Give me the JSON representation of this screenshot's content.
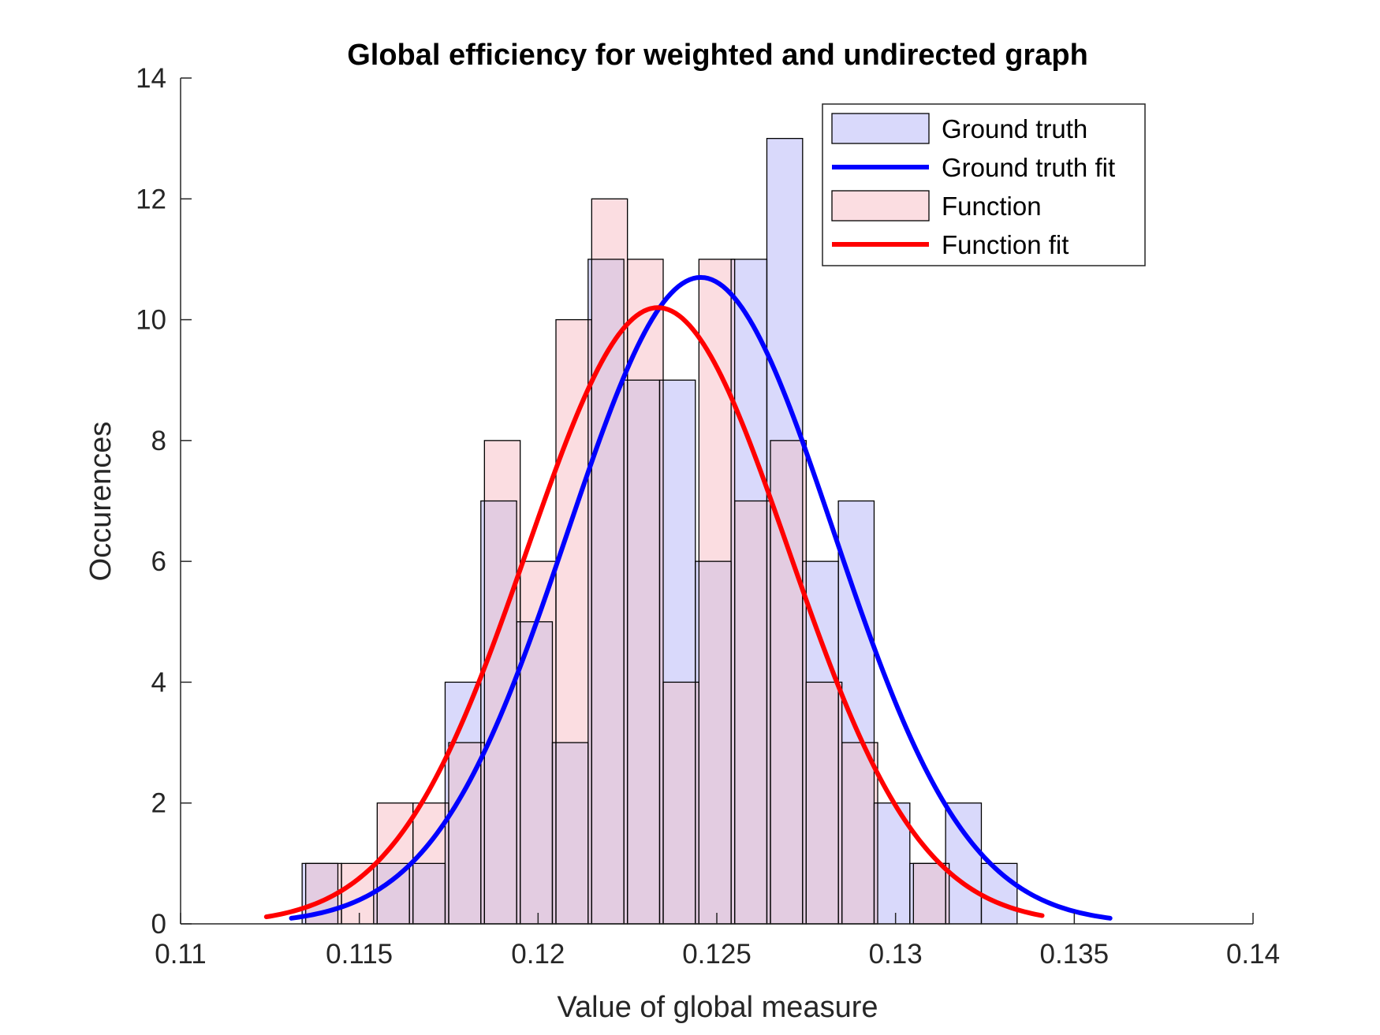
{
  "chart_data": {
    "type": "histogram",
    "title": "Global efficiency for weighted and undirected graph",
    "xlabel": "Value of global measure",
    "ylabel": "Occurences",
    "xlim": [
      0.11,
      0.14
    ],
    "ylim": [
      0,
      14
    ],
    "xticks": [
      "0.11",
      "0.115",
      "0.12",
      "0.125",
      "0.13",
      "0.135",
      "0.14"
    ],
    "yticks": [
      "0",
      "2",
      "4",
      "6",
      "8",
      "10",
      "12",
      "14"
    ],
    "legend_position": "top-right",
    "legend": [
      {
        "label": "Ground truth",
        "kind": "patch"
      },
      {
        "label": "Ground truth fit",
        "kind": "line"
      },
      {
        "label": "Function",
        "kind": "patch"
      },
      {
        "label": "Function fit",
        "kind": "line"
      }
    ],
    "colors": {
      "ground_truth_fill": "#d9d9fb",
      "function_fill": "#fbdde1",
      "overlap_fill": "#e3cce1",
      "ground_truth_line": "#0000ff",
      "function_line": "#ff0000",
      "edge": "#000000",
      "axis": "#262626"
    },
    "series": [
      {
        "name": "Ground truth",
        "bin_edges": [
          0.1134,
          0.1144,
          0.1154,
          0.1164,
          0.1174,
          0.1184,
          0.1194,
          0.1204,
          0.1214,
          0.1224,
          0.1234,
          0.1244,
          0.1254,
          0.1264,
          0.1274,
          0.1284,
          0.1294,
          0.1304,
          0.1314,
          0.1324,
          0.1334
        ],
        "counts": [
          1,
          0,
          1,
          1,
          4,
          7,
          5,
          3,
          11,
          9,
          9,
          6,
          11,
          13,
          6,
          7,
          2,
          1,
          2,
          1
        ]
      },
      {
        "name": "Function",
        "bin_edges": [
          0.1135,
          0.1145,
          0.1155,
          0.1165,
          0.1175,
          0.1185,
          0.1195,
          0.1205,
          0.1215,
          0.1225,
          0.1235,
          0.1245,
          0.1255,
          0.1265,
          0.1275,
          0.1285,
          0.1295,
          0.1305,
          0.1315
        ],
        "counts": [
          1,
          1,
          2,
          2,
          3,
          8,
          6,
          10,
          12,
          11,
          4,
          11,
          7,
          8,
          4,
          3,
          0,
          1
        ]
      }
    ],
    "fits": [
      {
        "name": "Ground truth fit",
        "type": "normal",
        "mean": 0.12455,
        "std": 0.00372,
        "peak": 10.7,
        "x_range": [
          0.1131,
          0.136
        ]
      },
      {
        "name": "Function fit",
        "type": "normal",
        "mean": 0.12335,
        "std": 0.00366,
        "peak": 10.2,
        "x_range": [
          0.1124,
          0.1341
        ]
      }
    ]
  }
}
